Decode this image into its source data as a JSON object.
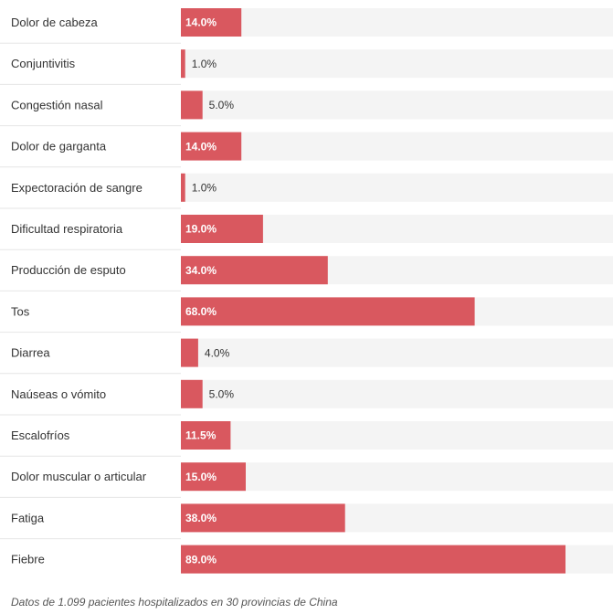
{
  "chart_data": {
    "type": "bar",
    "orientation": "horizontal",
    "categories": [
      "Dolor de cabeza",
      "Conjuntivitis",
      "Congestión nasal",
      "Dolor de garganta",
      "Expectoración de sangre",
      "Dificultad respiratoria",
      "Producción de esputo",
      "Tos",
      "Diarrea",
      "Naúseas o vómito",
      "Escalofríos",
      "Dolor muscular o articular",
      "Fatiga",
      "Fiebre"
    ],
    "values": [
      14.0,
      1.0,
      5.0,
      14.0,
      1.0,
      19.0,
      34.0,
      68.0,
      4.0,
      5.0,
      11.5,
      15.0,
      38.0,
      89.0
    ],
    "value_labels": [
      "14.0%",
      "1.0%",
      "5.0%",
      "14.0%",
      "1.0%",
      "19.0%",
      "34.0%",
      "68.0%",
      "4.0%",
      "5.0%",
      "11.5%",
      "15.0%",
      "38.0%",
      "89.0%"
    ],
    "xlim": [
      0,
      100
    ],
    "grid": false,
    "legend": "none",
    "colors": {
      "bar": "#d9585f",
      "track": "#f4f4f4",
      "separator": "#e6e6e6"
    }
  },
  "footnote": "Datos de 1.099 pacientes hospitalizados en 30 provincias de China"
}
